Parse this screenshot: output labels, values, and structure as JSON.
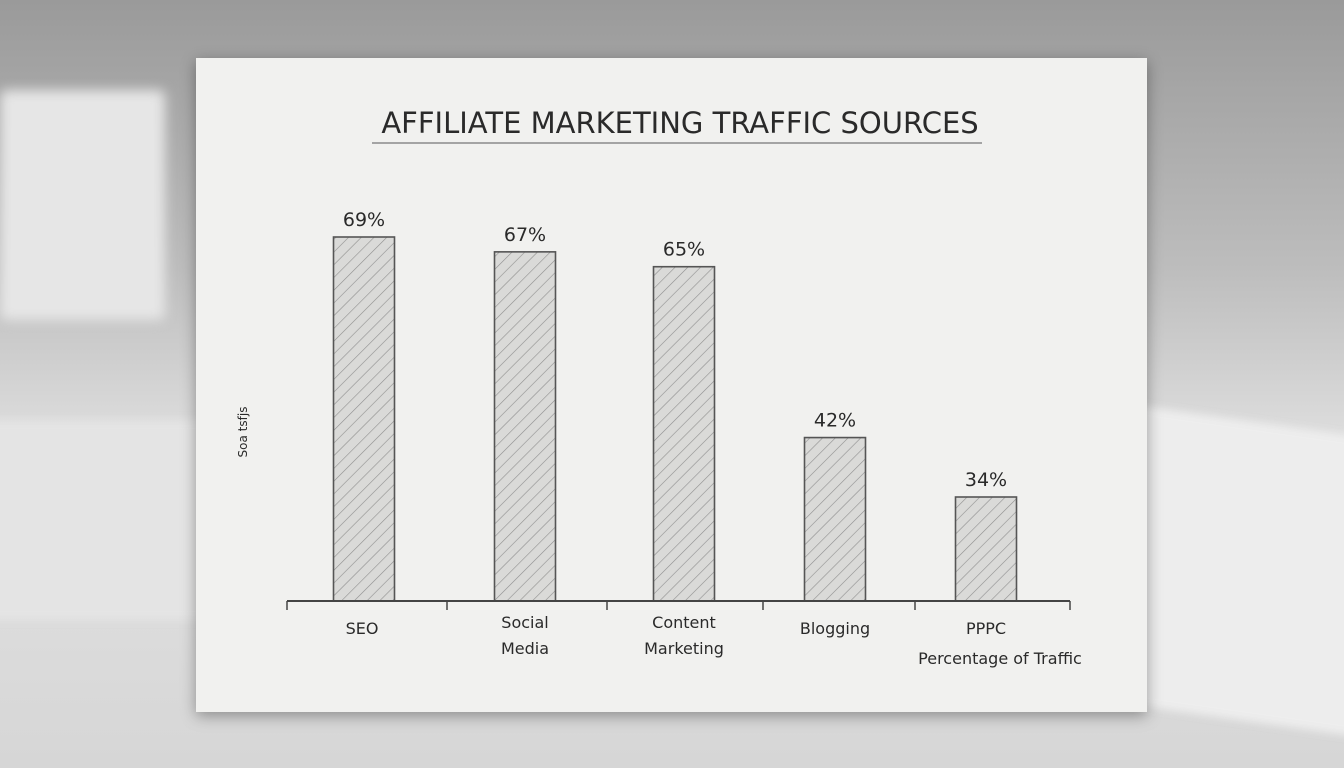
{
  "chart_data": {
    "type": "bar",
    "title": "AFFILIATE MARKETING TRAFFIC SOURCES",
    "ylabel": "Soa tsfjs",
    "xlabel": "Percentage of Traffic",
    "categories": [
      "SEO",
      "Social Media",
      "Content Marketing",
      "Blogging",
      "PPPC"
    ],
    "category_lines": [
      [
        "SEO"
      ],
      [
        "Social",
        "Media"
      ],
      [
        "Content",
        "Marketing"
      ],
      [
        "Blogging"
      ],
      [
        "PPPC"
      ]
    ],
    "values": [
      69,
      67,
      65,
      42,
      34
    ],
    "data_labels": [
      "69%",
      "67%",
      "65%",
      "42%",
      "34%"
    ],
    "unit": "%",
    "grid": false,
    "bar_fill": "hatched gray",
    "colors": {
      "bar": "#d8d8d6",
      "hatch": "#8a8a8a",
      "ink": "#2a2a2a",
      "paper": "#f1f1ef"
    }
  }
}
